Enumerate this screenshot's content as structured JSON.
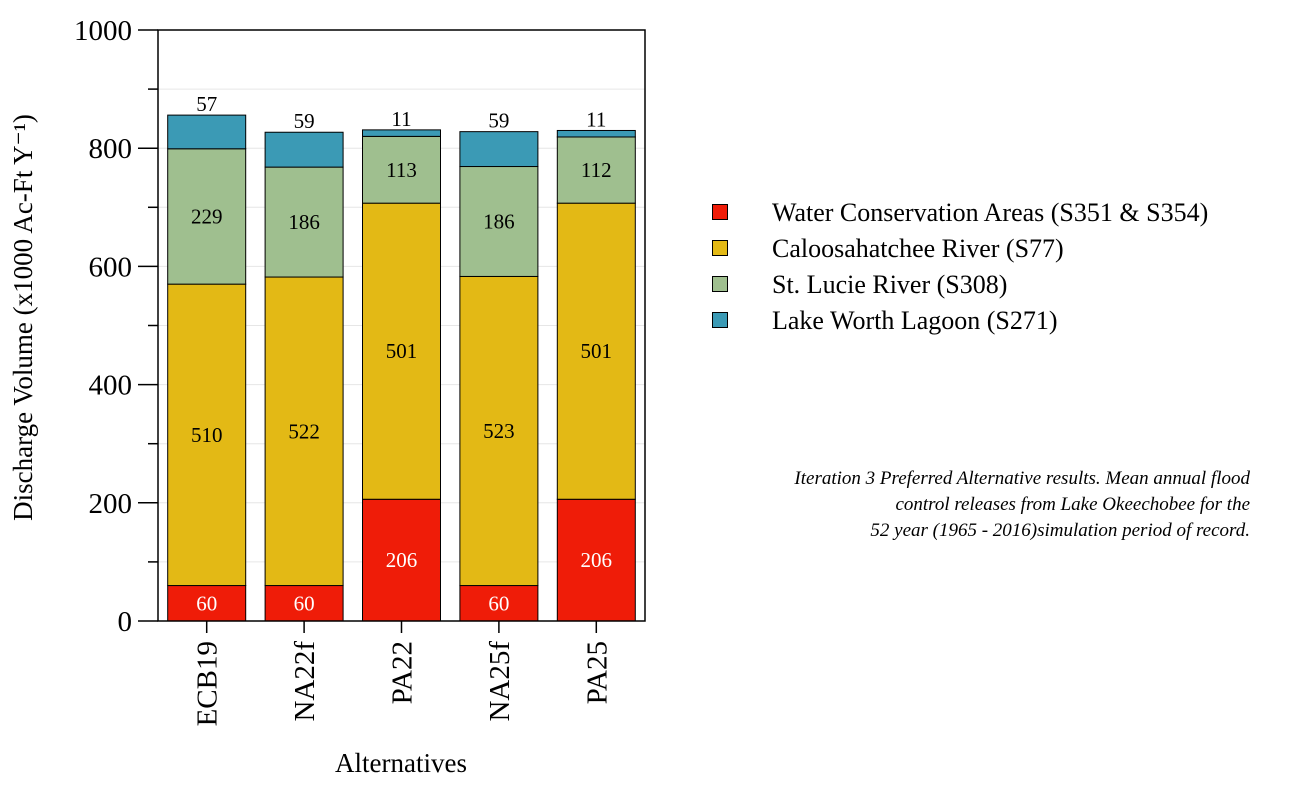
{
  "chart_data": {
    "type": "bar",
    "stacked": true,
    "categories": [
      "ECB19",
      "NA22f",
      "PA22",
      "NA25f",
      "PA25"
    ],
    "series": [
      {
        "name": "Water Conservation Areas (S351 & S354)",
        "color": "#ef1c08",
        "values": [
          60,
          60,
          206,
          60,
          206
        ]
      },
      {
        "name": "Caloosahatchee River (S77)",
        "color": "#e3b915",
        "values": [
          510,
          522,
          501,
          523,
          501
        ]
      },
      {
        "name": "St. Lucie River (S308)",
        "color": "#9fbf8f",
        "values": [
          229,
          186,
          113,
          186,
          112
        ]
      },
      {
        "name": "Lake Worth Lagoon (S271)",
        "color": "#3b9ab5",
        "values": [
          57,
          59,
          11,
          59,
          11
        ]
      }
    ],
    "xlabel": "Alternatives",
    "ylabel": "Discharge Volume (x1000 Ac-Ft Y⁻¹)",
    "ylim": [
      0,
      1000
    ],
    "yticks": [
      "0",
      "200",
      "400",
      "600",
      "800",
      "1000"
    ],
    "grid": true,
    "legend_position": "right"
  },
  "caption": {
    "line1": "Iteration 3 Preferred Alternative results. Mean annual flood",
    "line2": "control releases from Lake Okeechobee for the",
    "line3": "52 year (1965 - 2016)simulation period of record."
  }
}
